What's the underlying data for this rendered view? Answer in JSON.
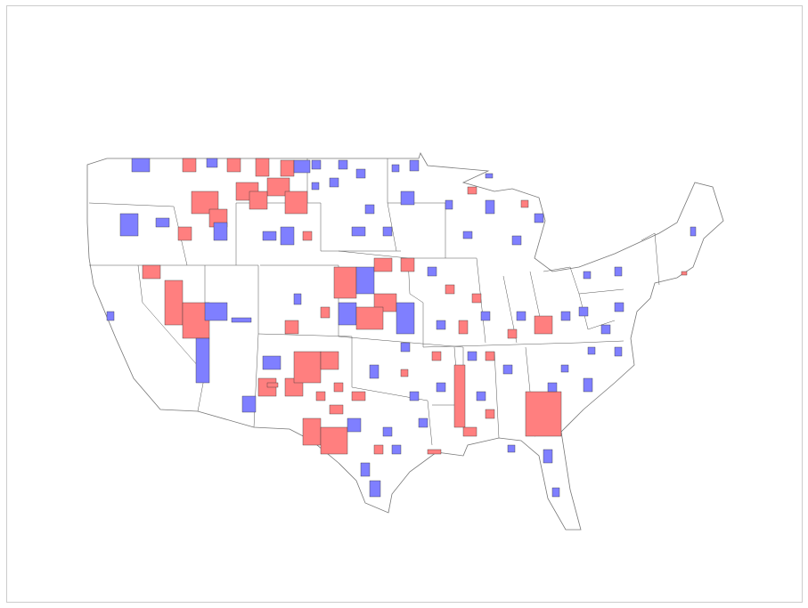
{
  "map": {
    "colors": [
      "#ff7f7f",
      "#7f7fff"
    ]
  }
}
